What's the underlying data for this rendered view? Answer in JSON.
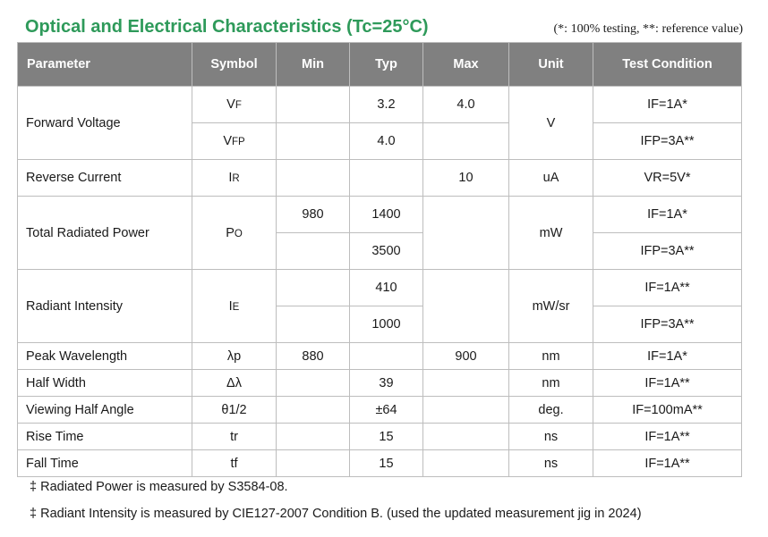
{
  "title": "Optical and Electrical Characteristics (Tc=25°C)",
  "note": "(*: 100% testing, **: reference value)",
  "headers": [
    "Parameter",
    "Symbol",
    "Min",
    "Typ",
    "Max",
    "Unit",
    "Test Condition"
  ],
  "rows": {
    "forward_voltage": {
      "parameter": "Forward Voltage",
      "symbol1": "VF",
      "typ1": "3.2",
      "max1": "4.0",
      "unit": "V",
      "cond1": "IF=1A*",
      "symbol2": "VFP",
      "typ2": "4.0",
      "cond2": "IFP=3A**"
    },
    "reverse_current": {
      "parameter": "Reverse Current",
      "symbol": "IR",
      "max": "10",
      "unit": "uA",
      "cond": "VR=5V*"
    },
    "total_radiated_power": {
      "parameter": "Total Radiated Power",
      "symbol": "PO",
      "min1": "980",
      "typ1": "1400",
      "typ2": "3500",
      "unit": "mW",
      "cond1": "IF=1A*",
      "cond2": "IFP=3A**"
    },
    "radiant_intensity": {
      "parameter": "Radiant Intensity",
      "symbol": "IE",
      "typ1": "410",
      "typ2": "1000",
      "unit": "mW/sr",
      "cond1": "IF=1A**",
      "cond2": "IFP=3A**"
    },
    "peak_wavelength": {
      "parameter": "Peak Wavelength",
      "symbol": "λp",
      "min": "880",
      "max": "900",
      "unit": "nm",
      "cond": "IF=1A*"
    },
    "half_width": {
      "parameter": "Half Width",
      "symbol": "Δλ",
      "typ": "39",
      "unit": "nm",
      "cond": "IF=1A**"
    },
    "viewing_half_angle": {
      "parameter": "Viewing Half Angle",
      "symbol": "θ1/2",
      "typ": "±64",
      "unit": "deg.",
      "cond": "IF=100mA**"
    },
    "rise_time": {
      "parameter": "Rise Time",
      "symbol": "tr",
      "typ": "15",
      "unit": "ns",
      "cond": "IF=1A**"
    },
    "fall_time": {
      "parameter": "Fall Time",
      "symbol": "tf",
      "typ": "15",
      "unit": "ns",
      "cond": "IF=1A**"
    }
  },
  "footnotes": [
    "‡ Radiated Power is measured by S3584-08.",
    "‡ Radiant Intensity is measured by CIE127-2007 Condition B. (used the updated measurement jig in 2024)"
  ]
}
